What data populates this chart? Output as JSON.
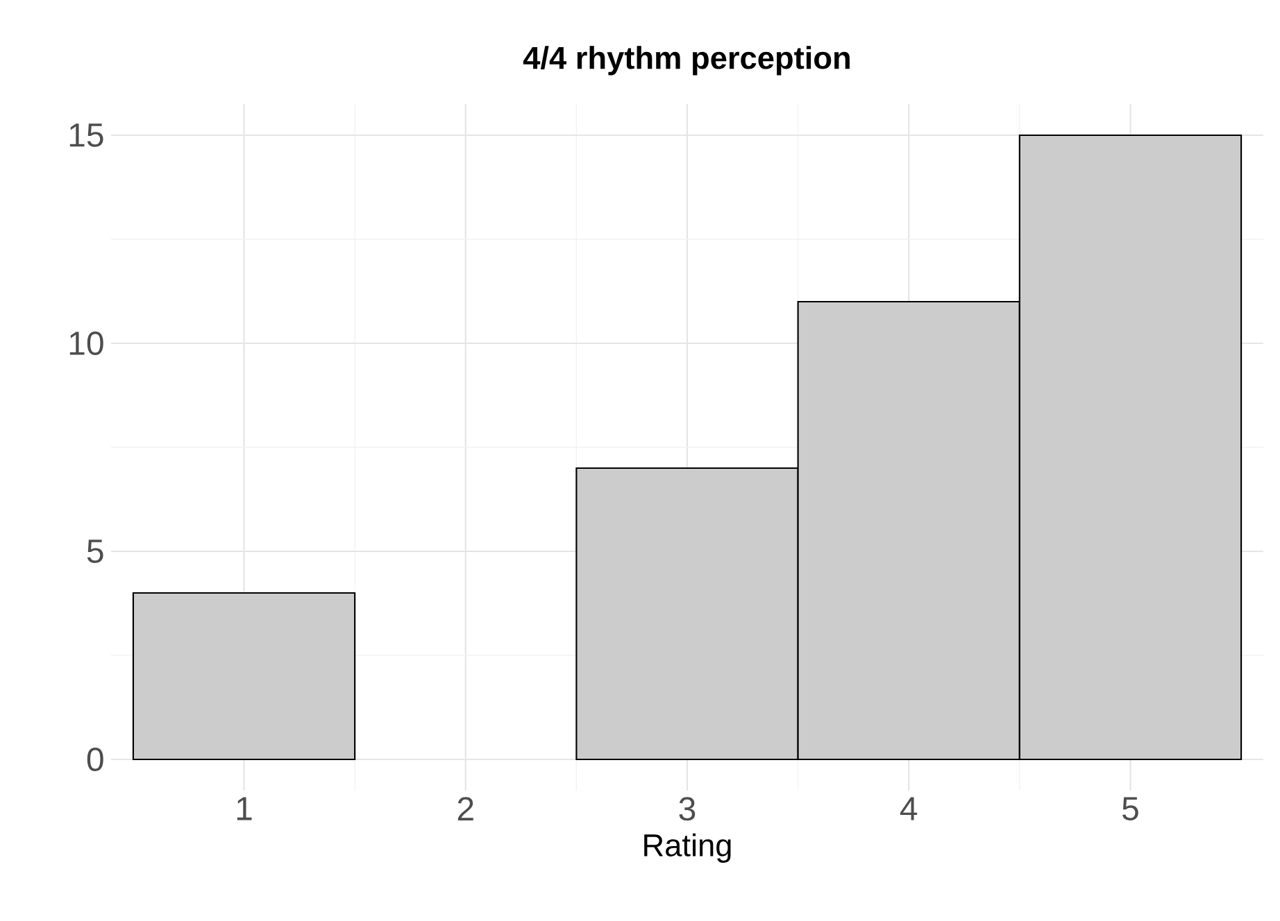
{
  "chart_data": {
    "type": "histogram",
    "title": "4/4 rhythm perception",
    "xlabel": "Rating",
    "bins": [
      0.5,
      1.5,
      2.5,
      3.5,
      4.5,
      5.5
    ],
    "values": [
      4,
      0,
      7,
      11,
      15
    ],
    "color": "#cccccc",
    "xlim": [
      0.4,
      5.6
    ],
    "ylim": [
      -0.75,
      15.75
    ],
    "xticks": [
      1,
      2,
      3,
      4,
      5
    ],
    "yticks": [
      0,
      5,
      10,
      15
    ],
    "grid": true
  }
}
